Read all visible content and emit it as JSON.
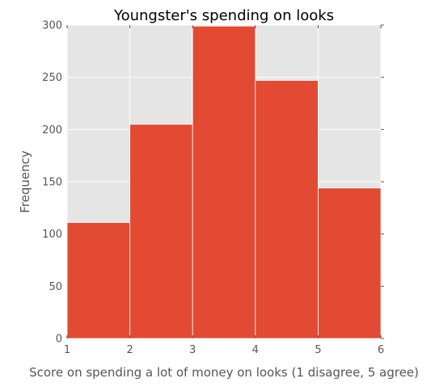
{
  "chart_data": {
    "type": "bar",
    "title": "Youngster's spending on looks",
    "xlabel": "Score on spending a lot of money on looks (1 disagree, 5 agree)",
    "ylabel": "Frequency",
    "xlim": [
      1,
      6
    ],
    "ylim": [
      0,
      300
    ],
    "x_ticks": [
      "1",
      "2",
      "3",
      "4",
      "5",
      "6"
    ],
    "y_ticks": [
      "0",
      "50",
      "100",
      "150",
      "200",
      "250",
      "300"
    ],
    "bins": [
      [
        1,
        2
      ],
      [
        2,
        3
      ],
      [
        3,
        4
      ],
      [
        4,
        5
      ],
      [
        5,
        6
      ]
    ],
    "values": [
      111,
      205,
      299,
      247,
      144
    ],
    "grid": true,
    "bar_color": "#e24a33",
    "background_color": "#e5e5e5",
    "grid_color": "#ffffff"
  }
}
